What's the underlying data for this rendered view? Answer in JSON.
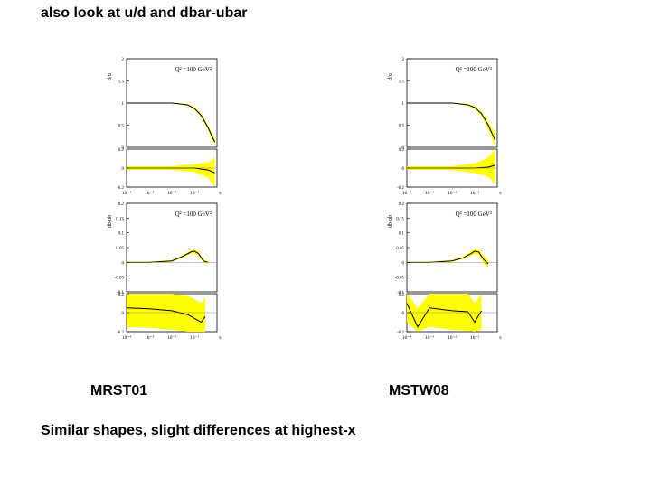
{
  "slide": {
    "title": "also look at u/d and dbar-ubar",
    "captions": [
      "MRST01",
      "MSTW08"
    ],
    "note": "Similar shapes, slight differences at highest-x"
  },
  "chart_data": [
    {
      "type": "line",
      "name": "MRST01",
      "band_color": "#ffff00",
      "line_color": "#000000",
      "x_tick_labels": [
        "10⁻⁴",
        "10⁻³",
        "10⁻²",
        "10⁻¹",
        "x"
      ],
      "xlim": [
        0.0001,
        1
      ],
      "xscale": "log",
      "panels": [
        {
          "ylabel": "d/u",
          "annotation": "Q² =100 GeV²",
          "ylim": [
            0,
            2
          ],
          "yticks": [
            "2",
            "1.5",
            "1",
            "0.5",
            "0"
          ],
          "curve": [
            {
              "x": 0.0001,
              "y": 1.0
            },
            {
              "x": 0.01,
              "y": 1.0
            },
            {
              "x": 0.05,
              "y": 0.96
            },
            {
              "x": 0.1,
              "y": 0.88
            },
            {
              "x": 0.2,
              "y": 0.72
            },
            {
              "x": 0.4,
              "y": 0.45
            },
            {
              "x": 0.6,
              "y": 0.25
            },
            {
              "x": 0.8,
              "y": 0.12
            }
          ],
          "band_halfwidth": [
            0.01,
            0.01,
            0.02,
            0.03,
            0.04,
            0.05,
            0.07,
            0.09
          ]
        },
        {
          "ylabel": "",
          "ylim": [
            -0.2,
            0.2
          ],
          "yticks": [
            "0.2",
            "0",
            "-0.2"
          ],
          "curve": [
            {
              "x": 0.0001,
              "y": 0.0
            },
            {
              "x": 0.01,
              "y": 0.0
            },
            {
              "x": 0.1,
              "y": 0.0
            },
            {
              "x": 0.4,
              "y": -0.02
            },
            {
              "x": 0.8,
              "y": -0.05
            }
          ],
          "band_halfwidth": [
            0.02,
            0.02,
            0.04,
            0.08,
            0.16
          ]
        },
        {
          "ylabel": "db-ub",
          "annotation": "Q² =100 GeV²",
          "ylim": [
            -0.1,
            0.2
          ],
          "yticks": [
            "0.2",
            "0.15",
            "0.1",
            "0.05",
            "0",
            "-0.05",
            "-0.1"
          ],
          "curve": [
            {
              "x": 0.0001,
              "y": 0.0
            },
            {
              "x": 0.001,
              "y": 0.0
            },
            {
              "x": 0.01,
              "y": 0.005
            },
            {
              "x": 0.03,
              "y": 0.02
            },
            {
              "x": 0.07,
              "y": 0.035
            },
            {
              "x": 0.1,
              "y": 0.038
            },
            {
              "x": 0.15,
              "y": 0.03
            },
            {
              "x": 0.25,
              "y": 0.005
            },
            {
              "x": 0.4,
              "y": 0.0
            }
          ],
          "band_halfwidth": [
            0.002,
            0.002,
            0.003,
            0.004,
            0.006,
            0.007,
            0.007,
            0.006,
            0.004
          ]
        },
        {
          "ylabel": "",
          "ylim": [
            -0.2,
            0.2
          ],
          "yticks": [
            "0.2",
            "0",
            "-0.2"
          ],
          "curve": [
            {
              "x": 0.0001,
              "y": 0.05
            },
            {
              "x": 0.001,
              "y": 0.04
            },
            {
              "x": 0.01,
              "y": 0.02
            },
            {
              "x": 0.05,
              "y": -0.02
            },
            {
              "x": 0.1,
              "y": -0.06
            },
            {
              "x": 0.2,
              "y": -0.1
            },
            {
              "x": 0.3,
              "y": -0.04
            }
          ],
          "band_halfwidth": [
            0.2,
            0.2,
            0.2,
            0.2,
            0.2,
            0.2,
            0.2
          ]
        }
      ]
    },
    {
      "type": "line",
      "name": "MSTW08",
      "band_color": "#ffff00",
      "line_color": "#000000",
      "x_tick_labels": [
        "10⁻⁴",
        "10⁻³",
        "10⁻²",
        "10⁻¹",
        "x"
      ],
      "xlim": [
        0.0001,
        1
      ],
      "xscale": "log",
      "panels": [
        {
          "ylabel": "d/u",
          "annotation": "Q² =100 GeV²",
          "ylim": [
            0,
            2
          ],
          "yticks": [
            "2",
            "1.5",
            "1",
            "0.5",
            "0"
          ],
          "curve": [
            {
              "x": 0.0001,
              "y": 1.0
            },
            {
              "x": 0.01,
              "y": 1.0
            },
            {
              "x": 0.05,
              "y": 0.96
            },
            {
              "x": 0.1,
              "y": 0.9
            },
            {
              "x": 0.2,
              "y": 0.76
            },
            {
              "x": 0.4,
              "y": 0.5
            },
            {
              "x": 0.6,
              "y": 0.3
            },
            {
              "x": 0.8,
              "y": 0.16
            }
          ],
          "band_halfwidth": [
            0.01,
            0.01,
            0.02,
            0.03,
            0.05,
            0.08,
            0.12,
            0.16
          ]
        },
        {
          "ylabel": "",
          "ylim": [
            -0.2,
            0.2
          ],
          "yticks": [
            "0.2",
            "0",
            "-0.2"
          ],
          "curve": [
            {
              "x": 0.0001,
              "y": 0.0
            },
            {
              "x": 0.01,
              "y": 0.0
            },
            {
              "x": 0.1,
              "y": 0.0
            },
            {
              "x": 0.4,
              "y": 0.01
            },
            {
              "x": 0.8,
              "y": 0.03
            }
          ],
          "band_halfwidth": [
            0.02,
            0.02,
            0.05,
            0.1,
            0.2
          ]
        },
        {
          "ylabel": "db-ub",
          "annotation": "Q² =100 GeV²",
          "ylim": [
            -0.1,
            0.2
          ],
          "yticks": [
            "0.2",
            "0.15",
            "0.1",
            "0.05",
            "0",
            "-0.05",
            "-0.1"
          ],
          "curve": [
            {
              "x": 0.0001,
              "y": 0.0
            },
            {
              "x": 0.001,
              "y": 0.0
            },
            {
              "x": 0.01,
              "y": 0.005
            },
            {
              "x": 0.03,
              "y": 0.015
            },
            {
              "x": 0.07,
              "y": 0.03
            },
            {
              "x": 0.1,
              "y": 0.038
            },
            {
              "x": 0.15,
              "y": 0.035
            },
            {
              "x": 0.25,
              "y": 0.01
            },
            {
              "x": 0.4,
              "y": -0.005
            }
          ],
          "band_halfwidth": [
            0.002,
            0.002,
            0.003,
            0.004,
            0.007,
            0.009,
            0.01,
            0.012,
            0.015
          ]
        },
        {
          "ylabel": "",
          "ylim": [
            -0.2,
            0.2
          ],
          "yticks": [
            "0.2",
            "0",
            "-0.2"
          ],
          "curve": [
            {
              "x": 0.0001,
              "y": 0.1
            },
            {
              "x": 0.0003,
              "y": -0.15
            },
            {
              "x": 0.001,
              "y": 0.05
            },
            {
              "x": 0.01,
              "y": 0.02
            },
            {
              "x": 0.05,
              "y": 0.01
            },
            {
              "x": 0.1,
              "y": -0.1
            },
            {
              "x": 0.2,
              "y": 0.02
            }
          ],
          "band_halfwidth": [
            0.2,
            0.2,
            0.2,
            0.2,
            0.2,
            0.2,
            0.2
          ]
        }
      ]
    }
  ]
}
